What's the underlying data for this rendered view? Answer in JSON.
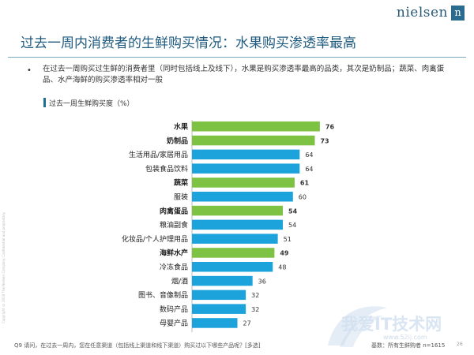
{
  "brand": {
    "name": "nielsen",
    "mark": "n"
  },
  "title": "过去一周内消费者的生鲜购买情况：水果购买渗透率最高",
  "bullet": "在过去一周购买过生鲜的消费者里（同时包括线上及线下），水果是购买渗透率最高的品类，其次是奶制品；蔬菜、肉禽蛋品、水产海鲜的购买渗透率相对一般",
  "chart_title": "过去一周生鲜购买度（%）",
  "side_note": "Copyright © 2016 The Nielsen Company. Confidential and proprietary.",
  "footnote": "Q9 请问，在过去一周内，您在任意渠道（包括线上渠道和线下渠道）购买过以下哪些产品呢？[多选]",
  "base_note": "基数：所有生鲜购者 n=1615",
  "page_number": "26",
  "watermark": {
    "text": "我爱IT技术网",
    "url": "www.52ij.com"
  },
  "colors": {
    "fresh": "#7dc242",
    "other": "#1ca3dc",
    "title": "#1f5a7f"
  },
  "chart_data": {
    "type": "bar",
    "orientation": "horizontal",
    "title": "过去一周生鲜购买度（%）",
    "xlim": [
      0,
      100
    ],
    "categories": [
      "水果",
      "奶制品",
      "生活用品/家居用品",
      "包装食品饮料",
      "蔬菜",
      "服装",
      "肉禽蛋品",
      "粮油副食",
      "化妆品/个人护理用品",
      "海鲜水产",
      "冷冻食品",
      "烟/酒",
      "图书、音像制品",
      "数码产品",
      "母婴产品"
    ],
    "values": [
      76,
      73,
      64,
      64,
      61,
      60,
      54,
      54,
      51,
      49,
      48,
      36,
      32,
      32,
      27
    ],
    "fresh": [
      true,
      true,
      false,
      false,
      true,
      false,
      true,
      false,
      false,
      true,
      false,
      false,
      false,
      false,
      false
    ],
    "data_labels": [
      "76",
      "73",
      "64",
      "64",
      "61",
      "60",
      "54",
      "54",
      "51",
      "49",
      "48",
      "36",
      "32",
      "32",
      "27"
    ]
  }
}
